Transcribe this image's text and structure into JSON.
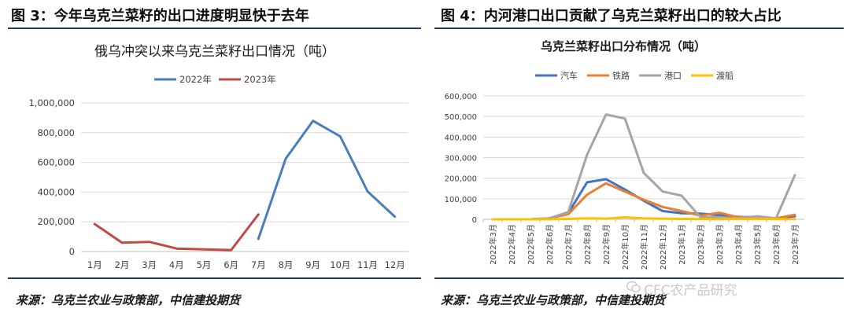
{
  "left_figure": {
    "caption": "图 3：今年乌克兰菜籽的出口进度明显快于去年",
    "source": "来源：乌克兰农业与政策部，中信建投期货"
  },
  "right_figure": {
    "caption": "图 4：内河港口出口贡献了乌克兰菜籽出口的较大占比",
    "source": "来源：乌克兰农业与政策部，中信建投期货"
  },
  "watermark": "CFC农产品研究",
  "colors": {
    "rule": "#1f3864",
    "blue": "#4a7ebb",
    "red": "#be4b48",
    "orange": "#ed7d31",
    "gray": "#a5a5a5",
    "yellow": "#ffc000"
  },
  "chart_data": [
    {
      "type": "line",
      "title": "俄乌冲突以来乌克兰菜籽出口情况（吨）",
      "categories": [
        "1月",
        "2月",
        "3月",
        "4月",
        "5月",
        "6月",
        "7月",
        "8月",
        "9月",
        "10月",
        "11月",
        "12月"
      ],
      "y_ticks": [
        "0",
        "200,000",
        "400,000",
        "600,000",
        "800,000",
        "1,000,000"
      ],
      "ylim": [
        0,
        1000000
      ],
      "legend_position": "top",
      "grid": true,
      "series": [
        {
          "name": "2022年",
          "color": "#4a7ebb",
          "values": [
            null,
            null,
            null,
            null,
            null,
            null,
            85000,
            625000,
            880000,
            775000,
            405000,
            235000
          ]
        },
        {
          "name": "2023年",
          "color": "#be4b48",
          "values": [
            185000,
            60000,
            65000,
            20000,
            15000,
            10000,
            250000,
            null,
            null,
            null,
            null,
            null
          ]
        }
      ]
    },
    {
      "type": "line",
      "title": "乌克兰菜籽出口分布情况（吨）",
      "categories": [
        "2022年3月",
        "2022年4月",
        "2022年5月",
        "2022年6月",
        "2022年7月",
        "2022年8月",
        "2022年9月",
        "2022年10月",
        "2022年11月",
        "2022年12月",
        "2023年1月",
        "2023年2月",
        "2023年3月",
        "2023年4月",
        "2023年5月",
        "2023年6月",
        "2023年7月"
      ],
      "y_ticks": [
        "0",
        "100,000",
        "200,000",
        "300,000",
        "400,000",
        "500,000",
        "600,000"
      ],
      "ylim": [
        0,
        600000
      ],
      "legend_position": "top",
      "grid": true,
      "series": [
        {
          "name": "汽车",
          "color": "#4472c4",
          "values": [
            0,
            0,
            0,
            5000,
            30000,
            180000,
            195000,
            145000,
            90000,
            40000,
            30000,
            28000,
            20000,
            12000,
            8000,
            5000,
            15000
          ]
        },
        {
          "name": "铁路",
          "color": "#ed7d31",
          "values": [
            0,
            0,
            0,
            5000,
            25000,
            120000,
            175000,
            135000,
            95000,
            60000,
            40000,
            18000,
            32000,
            10000,
            12000,
            5000,
            22000
          ]
        },
        {
          "name": "港口",
          "color": "#a5a5a5",
          "values": [
            0,
            0,
            0,
            5000,
            35000,
            315000,
            510000,
            490000,
            225000,
            135000,
            115000,
            10000,
            10000,
            5000,
            15000,
            5000,
            215000
          ]
        },
        {
          "name": "渡船",
          "color": "#ffc000",
          "values": [
            0,
            0,
            0,
            0,
            2000,
            5000,
            3000,
            10000,
            5000,
            3000,
            2000,
            1000,
            1000,
            1000,
            1000,
            1000,
            1000
          ]
        }
      ]
    }
  ]
}
